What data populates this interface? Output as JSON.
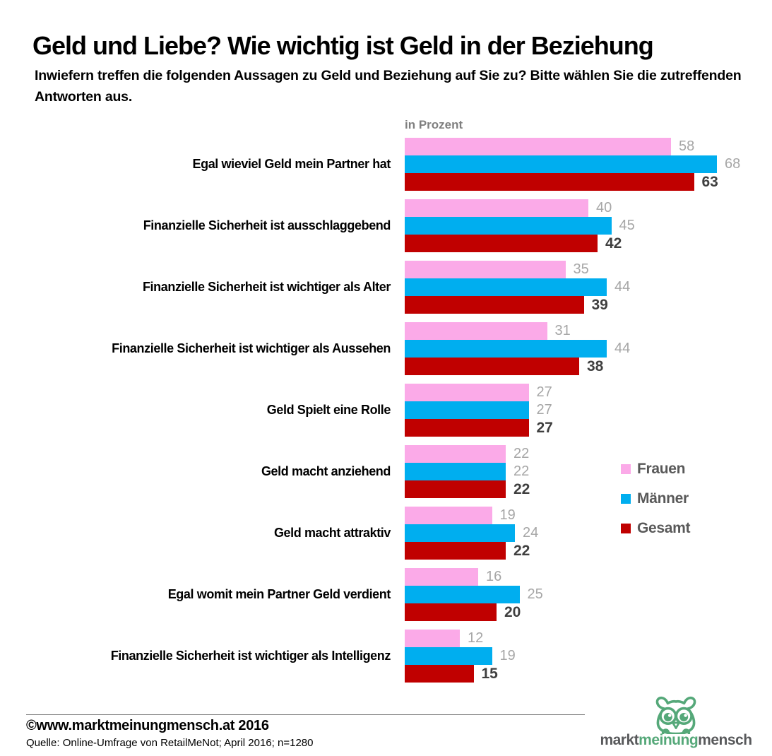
{
  "header": {
    "title": "Geld und Liebe? Wie wichtig ist Geld in der Beziehung",
    "subtitle": "Inwiefern treffen die folgenden Aussagen zu Geld und Beziehung auf Sie zu? Bitte wählen Sie die zutreffenden Antworten aus."
  },
  "chart_data": {
    "type": "bar",
    "orientation": "horizontal",
    "unit_label": "in Prozent",
    "grid": false,
    "legend_position": "right",
    "value_labels": "end-of-bar",
    "xlim": [
      0,
      70
    ],
    "categories": [
      "Egal wieviel Geld mein Partner hat",
      "Finanzielle Sicherheit ist ausschlaggebend",
      "Finanzielle Sicherheit ist wichtiger als Alter",
      "Finanzielle Sicherheit ist wichtiger als Aussehen",
      "Geld Spielt eine Rolle",
      "Geld macht anziehend",
      "Geld macht attraktiv",
      "Egal womit mein Partner Geld verdient",
      "Finanzielle Sicherheit ist wichtiger als Intelligenz"
    ],
    "series": [
      {
        "name": "Frauen",
        "color": "#FBAAE8",
        "values": [
          58,
          40,
          35,
          31,
          27,
          22,
          19,
          16,
          12
        ]
      },
      {
        "name": "Männer",
        "color": "#00AEEF",
        "values": [
          68,
          45,
          44,
          44,
          27,
          22,
          24,
          25,
          19
        ]
      },
      {
        "name": "Gesamt",
        "color": "#C00000",
        "values": [
          63,
          42,
          39,
          38,
          27,
          22,
          22,
          20,
          15
        ]
      }
    ]
  },
  "legend": {
    "items": [
      {
        "label": "Frauen",
        "color": "#FBAAE8"
      },
      {
        "label": "Männer",
        "color": "#00AEEF"
      },
      {
        "label": "Gesamt",
        "color": "#C00000"
      }
    ]
  },
  "footer": {
    "copyright": "©www.marktmeinungmensch.at 2016",
    "source": "Quelle: Online-Umfrage von RetailMeNot; April 2016; n=1280"
  },
  "logo": {
    "icon": "owl-icon",
    "brand_green": "#55A879",
    "text_parts": [
      {
        "text": "markt",
        "color": "#58595B"
      },
      {
        "text": "meinung",
        "color": "#55A879"
      },
      {
        "text": "mensch",
        "color": "#58595B"
      }
    ]
  },
  "colors": {
    "value_label_gray": "#A6A6A6",
    "value_label_dark": "#3F3F3F",
    "legend_text": "#595959",
    "unit_label_gray": "#7F7F7F"
  }
}
